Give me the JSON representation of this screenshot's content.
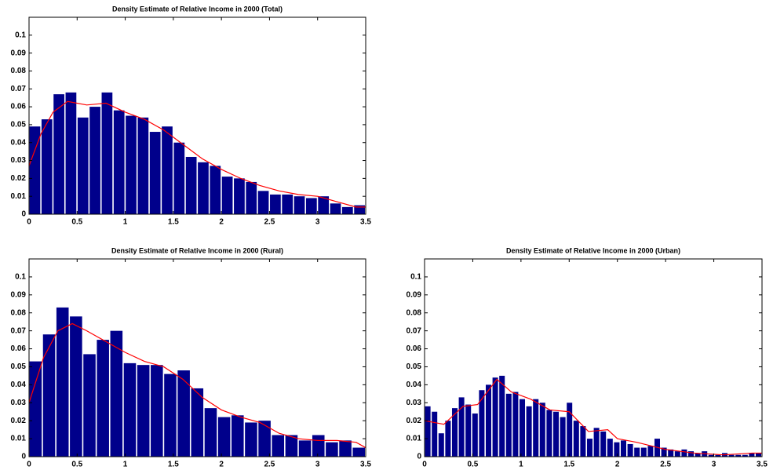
{
  "chart_data": [
    {
      "type": "histogram",
      "title": "Density Estimate of Relative Income in 2000 (Total)",
      "bins": [
        0,
        0.125,
        0.25,
        0.375,
        0.5,
        0.625,
        0.75,
        0.875,
        1,
        1.125,
        1.25,
        1.375,
        1.5,
        1.625,
        1.75,
        1.875,
        2,
        2.125,
        2.25,
        2.375,
        2.5,
        2.625,
        2.75,
        2.875,
        3,
        3.125,
        3.25,
        3.375,
        3.5
      ],
      "values": [
        0.049,
        0.053,
        0.067,
        0.068,
        0.054,
        0.06,
        0.068,
        0.058,
        0.055,
        0.054,
        0.046,
        0.049,
        0.04,
        0.032,
        0.029,
        0.027,
        0.021,
        0.02,
        0.018,
        0.013,
        0.011,
        0.011,
        0.01,
        0.009,
        0.01,
        0.006,
        0.004,
        0.005
      ],
      "color": "#00008b",
      "density": {
        "x": [
          0,
          0.125,
          0.25,
          0.4,
          0.6,
          0.8,
          1.0,
          1.2,
          1.4,
          1.6,
          1.8,
          2.0,
          2.2,
          2.4,
          2.6,
          2.8,
          3.0,
          3.2,
          3.4,
          3.5
        ],
        "values": [
          0.027,
          0.045,
          0.057,
          0.063,
          0.061,
          0.062,
          0.057,
          0.053,
          0.047,
          0.039,
          0.031,
          0.025,
          0.02,
          0.016,
          0.013,
          0.011,
          0.01,
          0.007,
          0.004,
          0.004
        ],
        "color": "#ff0000"
      },
      "xlim": [
        0,
        3.5
      ],
      "xticks": [
        0,
        0.5,
        1,
        1.5,
        2,
        2.5,
        3,
        3.5
      ],
      "ylim": [
        0,
        0.11
      ],
      "yticks": [
        0,
        0.01,
        0.02,
        0.03,
        0.04,
        0.05,
        0.06,
        0.07,
        0.08,
        0.09,
        0.1
      ]
    },
    {
      "type": "histogram",
      "title": "Density Estimate of Relative Income in 2000 (Rural)",
      "bins": [
        0,
        0.14,
        0.28,
        0.42,
        0.56,
        0.7,
        0.84,
        0.98,
        1.12,
        1.26,
        1.4,
        1.54,
        1.68,
        1.82,
        1.96,
        2.1,
        2.24,
        2.38,
        2.52,
        2.66,
        2.8,
        2.94,
        3.08,
        3.22,
        3.36,
        3.5
      ],
      "values": [
        0.053,
        0.068,
        0.083,
        0.078,
        0.057,
        0.065,
        0.07,
        0.052,
        0.051,
        0.051,
        0.046,
        0.048,
        0.038,
        0.027,
        0.022,
        0.023,
        0.019,
        0.02,
        0.012,
        0.012,
        0.009,
        0.012,
        0.008,
        0.009,
        0.005
      ],
      "color": "#00008b",
      "density": {
        "x": [
          0,
          0.15,
          0.3,
          0.45,
          0.6,
          0.8,
          1.0,
          1.2,
          1.4,
          1.6,
          1.8,
          2.0,
          2.2,
          2.4,
          2.6,
          2.8,
          3.0,
          3.2,
          3.4,
          3.5
        ],
        "values": [
          0.03,
          0.055,
          0.07,
          0.074,
          0.07,
          0.064,
          0.058,
          0.053,
          0.05,
          0.043,
          0.033,
          0.026,
          0.022,
          0.019,
          0.013,
          0.01,
          0.009,
          0.009,
          0.008,
          0.005
        ],
        "color": "#ff0000"
      },
      "xlim": [
        0,
        3.5
      ],
      "xticks": [
        0,
        0.5,
        1,
        1.5,
        2,
        2.5,
        3,
        3.5
      ],
      "ylim": [
        0,
        0.11
      ],
      "yticks": [
        0,
        0.01,
        0.02,
        0.03,
        0.04,
        0.05,
        0.06,
        0.07,
        0.08,
        0.09,
        0.1
      ]
    },
    {
      "type": "histogram",
      "title": "Density Estimate of Relative Income in 2000 (Urban)",
      "bins": [
        0,
        0.07,
        0.14,
        0.21,
        0.28,
        0.35,
        0.42,
        0.49,
        0.56,
        0.63,
        0.7,
        0.77,
        0.84,
        0.91,
        0.98,
        1.05,
        1.12,
        1.19,
        1.26,
        1.33,
        1.4,
        1.47,
        1.54,
        1.61,
        1.68,
        1.75,
        1.82,
        1.89,
        1.96,
        2.03,
        2.1,
        2.17,
        2.24,
        2.31,
        2.38,
        2.45,
        2.52,
        2.59,
        2.66,
        2.73,
        2.8,
        2.87,
        2.94,
        3.01,
        3.08,
        3.15,
        3.22,
        3.29,
        3.36,
        3.43,
        3.5
      ],
      "values": [
        0.028,
        0.025,
        0.013,
        0.02,
        0.027,
        0.033,
        0.029,
        0.024,
        0.037,
        0.04,
        0.044,
        0.045,
        0.035,
        0.036,
        0.032,
        0.028,
        0.032,
        0.03,
        0.026,
        0.025,
        0.022,
        0.03,
        0.02,
        0.017,
        0.01,
        0.016,
        0.014,
        0.01,
        0.008,
        0.009,
        0.007,
        0.005,
        0.005,
        0.006,
        0.01,
        0.005,
        0.004,
        0.003,
        0.004,
        0.003,
        0.002,
        0.003,
        0.001,
        0.001,
        0.002,
        0.001,
        0.001,
        0.001,
        0.002,
        0.002
      ],
      "color": "#00008b",
      "density": {
        "x": [
          0,
          0.2,
          0.4,
          0.55,
          0.75,
          0.9,
          1.1,
          1.3,
          1.5,
          1.7,
          1.9,
          2.0,
          2.2,
          2.5,
          2.8,
          3.1,
          3.4,
          3.5
        ],
        "values": [
          0.02,
          0.018,
          0.028,
          0.029,
          0.043,
          0.036,
          0.032,
          0.026,
          0.025,
          0.014,
          0.015,
          0.01,
          0.008,
          0.004,
          0.002,
          0.001,
          0.002,
          0.002
        ],
        "color": "#ff0000"
      },
      "xlim": [
        0,
        3.5
      ],
      "xticks": [
        0,
        0.5,
        1,
        1.5,
        2,
        2.5,
        3,
        3.5
      ],
      "ylim": [
        0,
        0.11
      ],
      "yticks": [
        0,
        0.01,
        0.02,
        0.03,
        0.04,
        0.05,
        0.06,
        0.07,
        0.08,
        0.09,
        0.1
      ]
    }
  ]
}
